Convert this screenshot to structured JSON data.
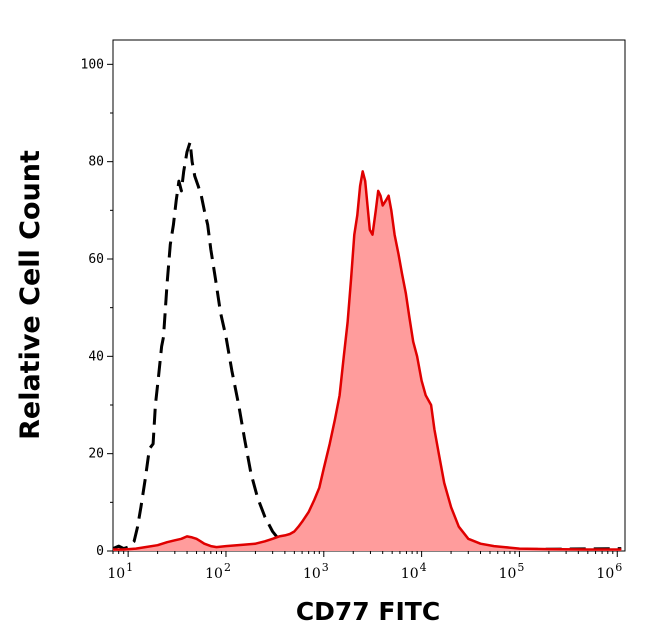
{
  "chart_data": {
    "type": "area",
    "xlabel": "CD77 FITC",
    "ylabel": "Relative Cell Count",
    "xscale": "log",
    "xlim": [
      7,
      1200000
    ],
    "ylim": [
      0,
      105
    ],
    "yticks": [
      0,
      20,
      40,
      60,
      80,
      100
    ],
    "xticks": [
      {
        "value": 10,
        "base": "10",
        "exp": "1"
      },
      {
        "value": 100,
        "base": "10",
        "exp": "2"
      },
      {
        "value": 1000,
        "base": "10",
        "exp": "3"
      },
      {
        "value": 10000,
        "base": "10",
        "exp": "4"
      },
      {
        "value": 100000,
        "base": "10",
        "exp": "5"
      },
      {
        "value": 1000000,
        "base": "10",
        "exp": "6"
      }
    ],
    "series": [
      {
        "style": "dashed",
        "color": "#000000",
        "fill": "none",
        "points": [
          [
            7,
            0.5
          ],
          [
            8,
            1
          ],
          [
            9,
            0.5
          ],
          [
            10,
            0.8
          ],
          [
            11.5,
            2
          ],
          [
            12.5,
            5
          ],
          [
            13.5,
            9
          ],
          [
            15,
            15
          ],
          [
            16.5,
            21
          ],
          [
            18,
            22
          ],
          [
            19,
            30
          ],
          [
            20.5,
            36
          ],
          [
            22,
            42
          ],
          [
            23,
            44
          ],
          [
            25,
            55
          ],
          [
            27,
            63
          ],
          [
            29,
            67
          ],
          [
            31,
            72
          ],
          [
            33,
            76
          ],
          [
            35,
            74
          ],
          [
            37,
            78
          ],
          [
            40,
            82
          ],
          [
            43,
            84
          ],
          [
            45,
            80
          ],
          [
            48,
            77
          ],
          [
            52,
            75
          ],
          [
            56,
            73
          ],
          [
            60,
            70
          ],
          [
            65,
            67
          ],
          [
            70,
            62
          ],
          [
            78,
            56
          ],
          [
            88,
            49
          ],
          [
            100,
            44
          ],
          [
            115,
            37
          ],
          [
            135,
            30
          ],
          [
            155,
            23
          ],
          [
            180,
            16
          ],
          [
            210,
            11
          ],
          [
            250,
            7
          ],
          [
            300,
            4
          ],
          [
            360,
            2
          ],
          [
            420,
            1
          ],
          [
            500,
            0.5
          ],
          [
            650,
            0.3
          ],
          [
            1000,
            0.5
          ],
          [
            2000,
            0.3
          ],
          [
            10000,
            0.5
          ],
          [
            100000,
            0.3
          ],
          [
            1100000,
            0.5
          ]
        ]
      },
      {
        "style": "solid",
        "color": "#e00000",
        "fill": "#ff9c9c",
        "points": [
          [
            7,
            0.3
          ],
          [
            9,
            0.3
          ],
          [
            12,
            0.5
          ],
          [
            15,
            0.8
          ],
          [
            20,
            1.2
          ],
          [
            25,
            1.8
          ],
          [
            30,
            2.2
          ],
          [
            35,
            2.5
          ],
          [
            40,
            3
          ],
          [
            45,
            2.8
          ],
          [
            50,
            2.5
          ],
          [
            55,
            2
          ],
          [
            60,
            1.5
          ],
          [
            70,
            1
          ],
          [
            80,
            0.8
          ],
          [
            100,
            1
          ],
          [
            150,
            1.3
          ],
          [
            200,
            1.5
          ],
          [
            250,
            2
          ],
          [
            300,
            2.5
          ],
          [
            350,
            3
          ],
          [
            400,
            3.2
          ],
          [
            450,
            3.5
          ],
          [
            500,
            4
          ],
          [
            550,
            5
          ],
          [
            600,
            6
          ],
          [
            700,
            8
          ],
          [
            800,
            10.5
          ],
          [
            900,
            13
          ],
          [
            1000,
            17
          ],
          [
            1150,
            22
          ],
          [
            1300,
            27
          ],
          [
            1450,
            32
          ],
          [
            1600,
            40
          ],
          [
            1750,
            47
          ],
          [
            1900,
            56
          ],
          [
            2050,
            65
          ],
          [
            2200,
            69
          ],
          [
            2350,
            75
          ],
          [
            2500,
            78
          ],
          [
            2650,
            76
          ],
          [
            2800,
            71
          ],
          [
            2950,
            66
          ],
          [
            3150,
            65
          ],
          [
            3400,
            70
          ],
          [
            3600,
            74
          ],
          [
            3800,
            73
          ],
          [
            4000,
            71
          ],
          [
            4300,
            72
          ],
          [
            4600,
            73
          ],
          [
            4900,
            70
          ],
          [
            5300,
            65
          ],
          [
            5800,
            61
          ],
          [
            6300,
            57
          ],
          [
            6900,
            53
          ],
          [
            7500,
            48
          ],
          [
            8200,
            43
          ],
          [
            9000,
            40
          ],
          [
            10000,
            35
          ],
          [
            11000,
            32
          ],
          [
            12500,
            30
          ],
          [
            13500,
            25
          ],
          [
            15000,
            20
          ],
          [
            17000,
            14
          ],
          [
            20000,
            9
          ],
          [
            24000,
            5
          ],
          [
            30000,
            2.5
          ],
          [
            40000,
            1.5
          ],
          [
            55000,
            1
          ],
          [
            70000,
            0.8
          ],
          [
            100000,
            0.5
          ],
          [
            200000,
            0.4
          ],
          [
            500000,
            0.3
          ],
          [
            1100000,
            0.3
          ]
        ]
      }
    ]
  }
}
